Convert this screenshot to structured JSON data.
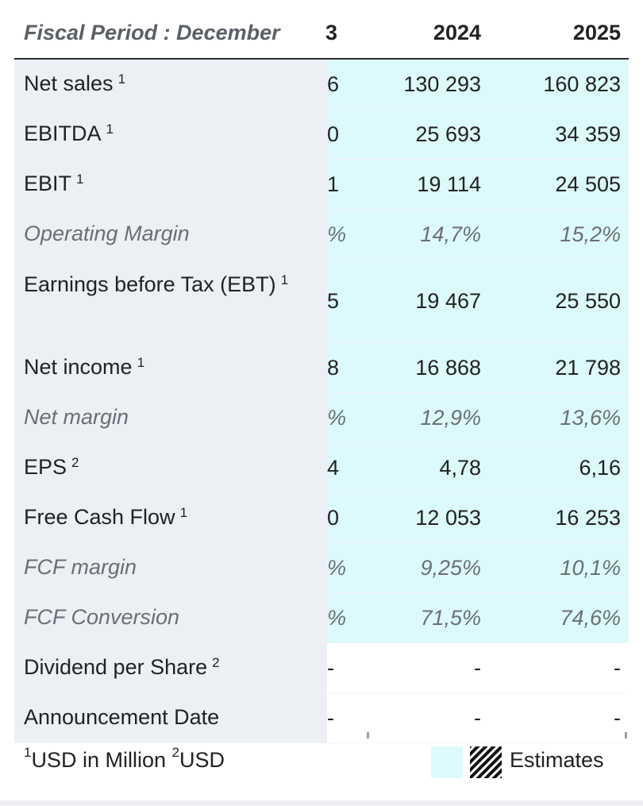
{
  "header": {
    "fiscal_label": "Fiscal Period : December",
    "columns": [
      "3",
      "2024",
      "2025"
    ]
  },
  "rows": [
    {
      "label": "Net sales",
      "sup": "1",
      "values": [
        "6",
        "130 293",
        "160 823"
      ],
      "italic": false,
      "estimate": true
    },
    {
      "label": "EBITDA",
      "sup": "1",
      "values": [
        "0",
        "25 693",
        "34 359"
      ],
      "italic": false,
      "estimate": true
    },
    {
      "label": "EBIT",
      "sup": "1",
      "values": [
        "1",
        "19 114",
        "24 505"
      ],
      "italic": false,
      "estimate": true
    },
    {
      "label": "Operating Margin",
      "sup": "",
      "values": [
        "%",
        "14,7%",
        "15,2%"
      ],
      "italic": true,
      "estimate": true
    },
    {
      "label": "Earnings before Tax (EBT)",
      "sup": "1",
      "values": [
        "5",
        "19 467",
        "25 550"
      ],
      "italic": false,
      "estimate": true
    },
    {
      "label": "Net income",
      "sup": "1",
      "values": [
        "8",
        "16 868",
        "21 798"
      ],
      "italic": false,
      "estimate": true
    },
    {
      "label": "Net margin",
      "sup": "",
      "values": [
        "%",
        "12,9%",
        "13,6%"
      ],
      "italic": true,
      "estimate": true
    },
    {
      "label": "EPS",
      "sup": "2",
      "values": [
        "4",
        "4,78",
        "6,16"
      ],
      "italic": false,
      "estimate": true
    },
    {
      "label": "Free Cash Flow",
      "sup": "1",
      "values": [
        "0",
        "12 053",
        "16 253"
      ],
      "italic": false,
      "estimate": true
    },
    {
      "label": "FCF margin",
      "sup": "",
      "values": [
        "%",
        "9,25%",
        "10,1%"
      ],
      "italic": true,
      "estimate": true
    },
    {
      "label": "FCF Conversion",
      "sup": "",
      "values": [
        "%",
        "71,5%",
        "74,6%"
      ],
      "italic": true,
      "estimate": true
    },
    {
      "label": "Dividend per Share",
      "sup": "2",
      "values": [
        "-",
        "-",
        "-"
      ],
      "italic": false,
      "estimate": false
    },
    {
      "label": "Announcement Date",
      "sup": "",
      "values": [
        "-",
        "-",
        "-"
      ],
      "italic": false,
      "estimate": false
    }
  ],
  "footer": {
    "note_sup1": "1",
    "note_text1": "USD in Million ",
    "note_sup2": "2",
    "note_text2": "USD",
    "legend_label": "Estimates"
  },
  "colors": {
    "estimate_bg": "#dcfafb",
    "label_bg": "#eceff3"
  }
}
